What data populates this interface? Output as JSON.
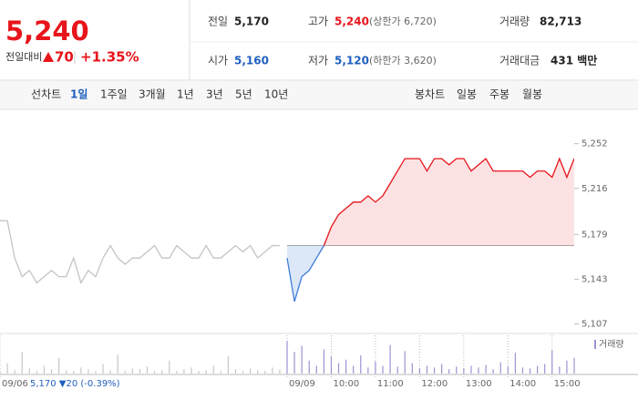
{
  "quote": {
    "price": "5,240",
    "change_label": "전일대비",
    "change": "70",
    "change_rate": "+1.35%"
  },
  "summary": [
    [
      {
        "label": "전일",
        "value": "5,170"
      },
      {
        "label": "고가",
        "value": "5,240",
        "note": "(상한가 6,720)"
      },
      {
        "label": "거래량",
        "value": "82,713"
      }
    ],
    [
      {
        "label": "시가",
        "value": "5,160"
      },
      {
        "label": "저가",
        "value": "5,120",
        "note": "(하한가 3,620)"
      },
      {
        "label": "거래대금",
        "value": "431 백만"
      }
    ]
  ],
  "line_tabs": {
    "label": "선차트",
    "items": [
      "1일",
      "1주일",
      "3개월",
      "1년",
      "3년",
      "5년",
      "10년"
    ]
  },
  "candle_tabs": {
    "label": "봉차트",
    "items": [
      "일봉",
      "주봉",
      "월봉"
    ]
  },
  "chart_data": {
    "type": "line",
    "categories": [
      "09/06",
      null,
      null,
      null,
      null,
      null,
      null,
      null,
      null,
      null,
      null,
      null,
      null,
      null,
      null,
      null,
      null,
      null,
      null,
      null,
      null,
      null,
      null,
      null,
      null,
      null,
      null,
      null,
      null,
      null,
      null,
      null,
      null,
      null,
      null,
      null,
      null,
      null,
      null,
      "09/09",
      null,
      null,
      null,
      null,
      null,
      "10:00",
      null,
      null,
      null,
      null,
      null,
      "11:00",
      null,
      null,
      null,
      null,
      null,
      "12:00",
      null,
      null,
      null,
      null,
      null,
      "13:00",
      null,
      null,
      null,
      null,
      null,
      "14:00",
      null,
      null,
      null,
      null,
      null,
      "15:00",
      null,
      null,
      null
    ],
    "baseline": 5170,
    "annotation": "5,170 ▼20 (-0.39%)",
    "series": [
      {
        "color": "#c4c4c4",
        "values": [
          5190,
          5190,
          5160,
          5145,
          5150,
          5140,
          5145,
          5150,
          5145,
          5145,
          5160,
          5140,
          5150,
          5145,
          5160,
          5170,
          5160,
          5155,
          5160,
          5160,
          5165,
          5170,
          5160,
          5160,
          5170,
          5165,
          5160,
          5160,
          5170,
          5160,
          5160,
          5165,
          5170,
          5165,
          5170,
          5160,
          5165,
          5170,
          5170,
          null,
          null,
          null,
          null,
          null,
          null,
          null,
          null,
          null,
          null,
          null,
          null,
          null,
          null,
          null,
          null,
          null,
          null,
          null,
          null,
          null,
          null,
          null,
          null,
          null,
          null,
          null,
          null,
          null,
          null,
          null,
          null,
          null,
          null,
          null,
          null,
          null,
          null,
          null,
          null
        ]
      },
      {
        "color": "#e8141b",
        "color_below": "#3d7bd9",
        "values": [
          null,
          null,
          null,
          null,
          null,
          null,
          null,
          null,
          null,
          null,
          null,
          null,
          null,
          null,
          null,
          null,
          null,
          null,
          null,
          null,
          null,
          null,
          null,
          null,
          null,
          null,
          null,
          null,
          null,
          null,
          null,
          null,
          null,
          null,
          null,
          null,
          null,
          null,
          null,
          5160,
          5125,
          5145,
          5150,
          5160,
          5170,
          5185,
          5195,
          5200,
          5205,
          5205,
          5210,
          5205,
          5210,
          5220,
          5230,
          5240,
          5240,
          5240,
          5230,
          5240,
          5240,
          5235,
          5240,
          5240,
          5230,
          5235,
          5240,
          5230,
          5230,
          5230,
          5230,
          5230,
          5225,
          5230,
          5230,
          5225,
          5240,
          5225,
          5240
        ]
      }
    ],
    "volume": {
      "name": "거래량",
      "color": "#9f92d4",
      "ylim": [
        0,
        4000
      ],
      "values": [
        300,
        1200,
        400,
        2500,
        600,
        300,
        900,
        500,
        1800,
        400,
        300,
        700,
        500,
        300,
        1100,
        400,
        2200,
        300,
        600,
        500,
        800,
        300,
        400,
        1500,
        300,
        500,
        700,
        300,
        400,
        900,
        300,
        2000,
        500,
        300,
        600,
        400,
        300,
        700,
        500,
        3800,
        2500,
        3200,
        1500,
        900,
        2800,
        2000,
        1200,
        1600,
        900,
        2100,
        700,
        1400,
        900,
        3300,
        800,
        2600,
        1200,
        600,
        900,
        700,
        1100,
        500,
        800,
        600,
        900,
        700,
        1000,
        500,
        1300,
        800,
        2400,
        700,
        600,
        900,
        1100,
        2700,
        800,
        1500,
        1800
      ]
    },
    "ylim": [
      5100,
      5265
    ],
    "yticks": [
      {
        "value": 5107,
        "label": "5,107"
      },
      {
        "value": 5143,
        "label": "5,143"
      },
      {
        "value": 5179,
        "label": "5,179"
      },
      {
        "value": 5216,
        "label": "5,216"
      },
      {
        "value": 5252,
        "label": "5,252"
      }
    ]
  }
}
